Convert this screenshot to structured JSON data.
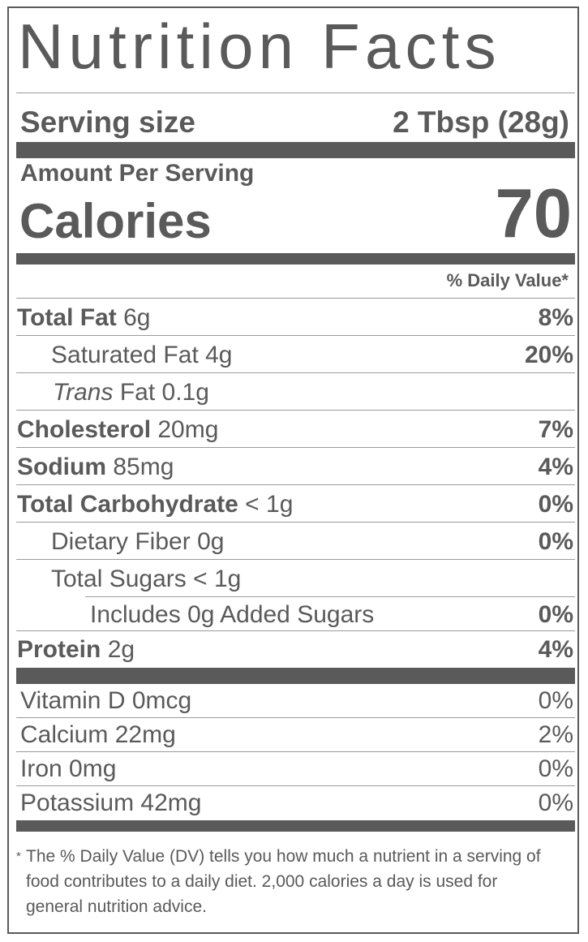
{
  "title": "Nutrition Facts",
  "serving": {
    "label": "Serving size",
    "value": "2 Tbsp (28g)"
  },
  "calories": {
    "amount_per_serving": "Amount Per Serving",
    "label": "Calories",
    "value": "70"
  },
  "dv_header": "% Daily Value*",
  "nutrients": [
    {
      "name": "Total Fat",
      "amount": "6g",
      "dv": "8%"
    },
    {
      "name": "Saturated Fat",
      "amount": "4g",
      "dv": "20%"
    },
    {
      "name_italic": "Trans",
      "name": "Fat",
      "amount": "0.1g",
      "dv": ""
    },
    {
      "name": "Cholesterol",
      "amount": "20mg",
      "dv": "7%"
    },
    {
      "name": "Sodium",
      "amount": "85mg",
      "dv": "4%"
    },
    {
      "name": "Total Carbohydrate",
      "amount": "< 1g",
      "dv": "0%"
    },
    {
      "name": "Dietary Fiber",
      "amount": "0g",
      "dv": "0%"
    },
    {
      "name": "Total Sugars",
      "amount": "< 1g",
      "dv": ""
    },
    {
      "name": "Includes 0g Added Sugars",
      "amount": "",
      "dv": "0%"
    },
    {
      "name": "Protein",
      "amount": "2g",
      "dv": "4%"
    }
  ],
  "vitamins": [
    {
      "name": "Vitamin D",
      "amount": "0mcg",
      "dv": "0%"
    },
    {
      "name": "Calcium",
      "amount": "22mg",
      "dv": "2%"
    },
    {
      "name": "Iron",
      "amount": "0mg",
      "dv": "0%"
    },
    {
      "name": "Potassium",
      "amount": "42mg",
      "dv": "0%"
    }
  ],
  "footnote": {
    "star": "*",
    "text": "The % Daily Value (DV) tells you how much a nutrient in a serving of food contributes to a daily diet. 2,000 calories a day is used for general nutrition advice."
  }
}
